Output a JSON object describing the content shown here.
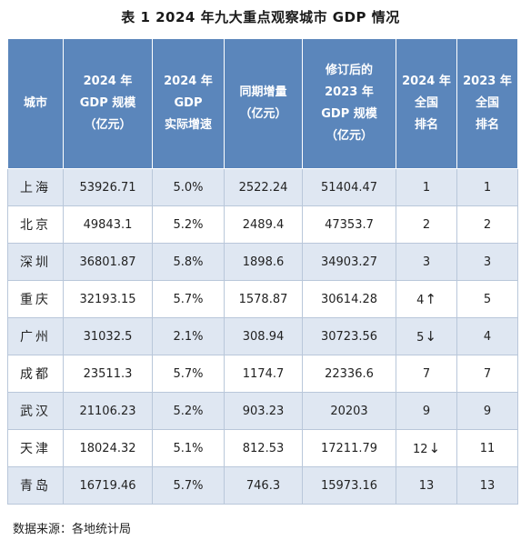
{
  "title": "表 1  2024 年九大重点观察城市 GDP 情况",
  "headers": [
    [
      "城市"
    ],
    [
      "2024 年",
      "GDP 规模",
      "（亿元）"
    ],
    [
      "2024 年",
      "GDP",
      "实际增速"
    ],
    [
      "同期增量",
      "（亿元）"
    ],
    [
      "修订后的",
      "2023 年",
      "GDP 规模",
      "（亿元）"
    ],
    [
      "2024 年",
      "全国",
      "排名"
    ],
    [
      "2023 年",
      "全国",
      "排名"
    ]
  ],
  "rows": [
    {
      "city": "上海",
      "gdp2024": "53926.71",
      "growth": "5.0%",
      "increase": "2522.24",
      "gdp2023": "51404.47",
      "rank2024": "1",
      "arrow": "",
      "rank2023": "1"
    },
    {
      "city": "北京",
      "gdp2024": "49843.1",
      "growth": "5.2%",
      "increase": "2489.4",
      "gdp2023": "47353.7",
      "rank2024": "2",
      "arrow": "",
      "rank2023": "2"
    },
    {
      "city": "深圳",
      "gdp2024": "36801.87",
      "growth": "5.8%",
      "increase": "1898.6",
      "gdp2023": "34903.27",
      "rank2024": "3",
      "arrow": "",
      "rank2023": "3"
    },
    {
      "city": "重庆",
      "gdp2024": "32193.15",
      "growth": "5.7%",
      "increase": "1578.87",
      "gdp2023": "30614.28",
      "rank2024": "4",
      "arrow": "↑",
      "rank2023": "5"
    },
    {
      "city": "广州",
      "gdp2024": "31032.5",
      "growth": "2.1%",
      "increase": "308.94",
      "gdp2023": "30723.56",
      "rank2024": "5",
      "arrow": "↓",
      "rank2023": "4"
    },
    {
      "city": "成都",
      "gdp2024": "23511.3",
      "growth": "5.7%",
      "increase": "1174.7",
      "gdp2023": "22336.6",
      "rank2024": "7",
      "arrow": "",
      "rank2023": "7"
    },
    {
      "city": "武汉",
      "gdp2024": "21106.23",
      "growth": "5.2%",
      "increase": "903.23",
      "gdp2023": "20203",
      "rank2024": "9",
      "arrow": "",
      "rank2023": "9"
    },
    {
      "city": "天津",
      "gdp2024": "18024.32",
      "growth": "5.1%",
      "increase": "812.53",
      "gdp2023": "17211.79",
      "rank2024": "12",
      "arrow": "↓",
      "rank2023": "11"
    },
    {
      "city": "青岛",
      "gdp2024": "16719.46",
      "growth": "5.7%",
      "increase": "746.3",
      "gdp2023": "15973.16",
      "rank2024": "13",
      "arrow": "",
      "rank2023": "13"
    }
  ],
  "source": "数据来源：各地统计局"
}
